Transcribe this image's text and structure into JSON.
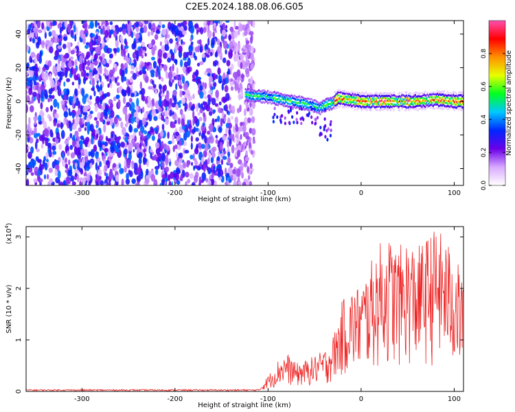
{
  "title": "C2E5.2024.188.08.06.G05",
  "chart_data": [
    {
      "type": "heatmap",
      "xlabel": "Height of straight line (km)",
      "ylabel": "Frequency (Hz)",
      "xlim": [
        -360,
        110
      ],
      "ylim": [
        -50,
        48
      ],
      "x_ticks": [
        -300,
        -200,
        -100,
        0,
        100
      ],
      "y_ticks": [
        -40,
        -20,
        0,
        20,
        40
      ],
      "colorbar": {
        "label": "Normalized spectral amplitude",
        "range": [
          0,
          1
        ],
        "ticks": [
          0.0,
          0.2,
          0.4,
          0.6,
          0.8
        ],
        "tick_labels": [
          "0.0",
          "0.2",
          "0.4",
          "0.6",
          "0.8"
        ],
        "colors": [
          "#ffffff",
          "#d9a9ff",
          "#6a00e8",
          "#0026ff",
          "#00c8ff",
          "#00ff20",
          "#e8ff00",
          "#ff9000",
          "#ff0000",
          "#ff4fb0"
        ]
      },
      "noise_region": {
        "x": [
          -360,
          -125
        ],
        "y": [
          -50,
          48
        ]
      },
      "signal_ridge": {
        "x": [
          -125,
          -115,
          -105,
          -95,
          -85,
          -75,
          -65,
          -55,
          -45,
          -38,
          -32,
          -25,
          -15,
          0,
          20,
          40,
          60,
          80,
          100,
          110
        ],
        "y": [
          4,
          3,
          3,
          2,
          1,
          0,
          -1,
          -2,
          -4,
          -2,
          -1,
          2,
          1,
          0,
          0,
          0,
          0,
          1,
          0,
          0
        ]
      }
    },
    {
      "type": "line",
      "xlabel": "Height of straight line (km)",
      "ylabel": "SNR (10 * v/v)",
      "y_multiplier": "(x10",
      "y_multiplier_exp": "4",
      "xlim": [
        -360,
        110
      ],
      "ylim": [
        0,
        3.2
      ],
      "x_ticks": [
        -300,
        -200,
        -100,
        0,
        100
      ],
      "y_ticks": [
        0,
        1,
        2,
        3
      ],
      "series": [
        {
          "color": "#ee2222",
          "envelope_x": [
            -360,
            -110,
            -100,
            -90,
            -80,
            -70,
            -60,
            -50,
            -40,
            -35,
            -30,
            -25,
            -20,
            -10,
            0,
            10,
            20,
            30,
            40,
            50,
            60,
            70,
            80,
            90,
            100,
            110
          ],
          "envelope_y": [
            0.04,
            0.04,
            0.35,
            0.6,
            0.75,
            0.55,
            0.6,
            0.7,
            0.8,
            0.9,
            1.1,
            1.4,
            1.8,
            2.0,
            2.1,
            2.5,
            2.9,
            3.0,
            2.8,
            3.0,
            2.8,
            3.0,
            3.2,
            3.0,
            2.7,
            2.2
          ]
        }
      ]
    }
  ]
}
